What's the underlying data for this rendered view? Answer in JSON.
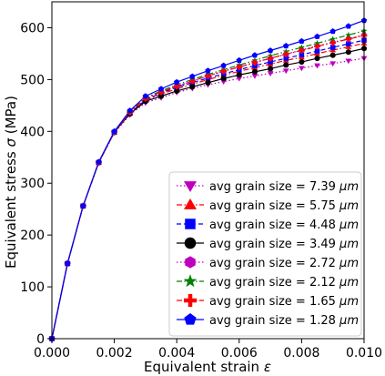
{
  "chart_data": {
    "type": "line",
    "xlabel": "Equivalent strain",
    "xlabel_symbol": "ε",
    "ylabel": "Equivalent stress",
    "ylabel_symbol": "σ",
    "ylabel_unit": "(MPa)",
    "xlim": [
      0.0,
      0.01
    ],
    "ylim": [
      0,
      650
    ],
    "xticks": [
      "0.000",
      "0.002",
      "0.004",
      "0.006",
      "0.008",
      "0.010"
    ],
    "yticks": [
      "0",
      "100",
      "200",
      "300",
      "400",
      "500",
      "600"
    ],
    "grid": false,
    "legend_position": "lower-right",
    "x": [
      0.0,
      0.0005,
      0.001,
      0.0015,
      0.002,
      0.0025,
      0.003,
      0.0035,
      0.004,
      0.0045,
      0.005,
      0.0055,
      0.006,
      0.0065,
      0.007,
      0.0075,
      0.008,
      0.0085,
      0.009,
      0.0095,
      0.01
    ],
    "series": [
      {
        "name": "avg grain size = 7.39",
        "unit": "μm",
        "color": "#bf00bf",
        "marker": "triangle-down",
        "linestyle": "dotted",
        "values": [
          0,
          145,
          256,
          339,
          397,
          432,
          455,
          465,
          475,
          483,
          490,
          496,
          502,
          507,
          512,
          517,
          522,
          527,
          531,
          536,
          541
        ]
      },
      {
        "name": "avg grain size = 5.75",
        "unit": "μm",
        "color": "#ff0000",
        "marker": "triangle-up",
        "linestyle": "dashdot",
        "values": [
          0,
          145,
          256,
          340,
          398,
          435,
          460,
          472,
          482,
          491,
          500,
          508,
          516,
          523,
          530,
          537,
          543,
          550,
          557,
          563,
          570
        ]
      },
      {
        "name": "avg grain size = 4.48",
        "unit": "μm",
        "color": "#0000ff",
        "marker": "square",
        "linestyle": "dashed",
        "values": [
          0,
          145,
          256,
          340,
          398,
          435,
          461,
          474,
          485,
          494,
          503,
          511,
          519,
          527,
          534,
          541,
          548,
          555,
          562,
          569,
          576
        ]
      },
      {
        "name": "avg grain size = 3.49",
        "unit": "μm",
        "color": "#000000",
        "marker": "circle",
        "linestyle": "solid",
        "values": [
          0,
          145,
          256,
          340,
          399,
          434,
          458,
          468,
          478,
          486,
          494,
          502,
          509,
          515,
          521,
          528,
          534,
          541,
          547,
          553,
          560
        ]
      },
      {
        "name": "avg grain size = 2.72",
        "unit": "μm",
        "color": "#bf00bf",
        "marker": "hexagon",
        "linestyle": "dotted",
        "values": [
          0,
          145,
          256,
          340,
          399,
          437,
          463,
          476,
          487,
          497,
          507,
          516,
          525,
          533,
          541,
          549,
          557,
          565,
          572,
          579,
          586
        ]
      },
      {
        "name": "avg grain size = 2.12",
        "unit": "μm",
        "color": "#008000",
        "marker": "star",
        "linestyle": "dashdot",
        "values": [
          0,
          145,
          256,
          340,
          399,
          438,
          465,
          478,
          490,
          500,
          510,
          519,
          528,
          537,
          546,
          554,
          562,
          570,
          578,
          586,
          594
        ]
      },
      {
        "name": "avg grain size = 1.65",
        "unit": "μm",
        "color": "#ff0000",
        "marker": "plus",
        "linestyle": "dashdot",
        "values": [
          0,
          145,
          256,
          340,
          399,
          437,
          464,
          476,
          487,
          497,
          507,
          516,
          524,
          533,
          541,
          549,
          556,
          564,
          571,
          578,
          585
        ]
      },
      {
        "name": "avg grain size = 1.28",
        "unit": "μm",
        "color": "#0000ff",
        "marker": "pentagon",
        "linestyle": "solid",
        "values": [
          0,
          145,
          256,
          341,
          400,
          440,
          468,
          482,
          495,
          506,
          517,
          527,
          537,
          547,
          556,
          565,
          574,
          583,
          593,
          603,
          614
        ]
      }
    ]
  }
}
